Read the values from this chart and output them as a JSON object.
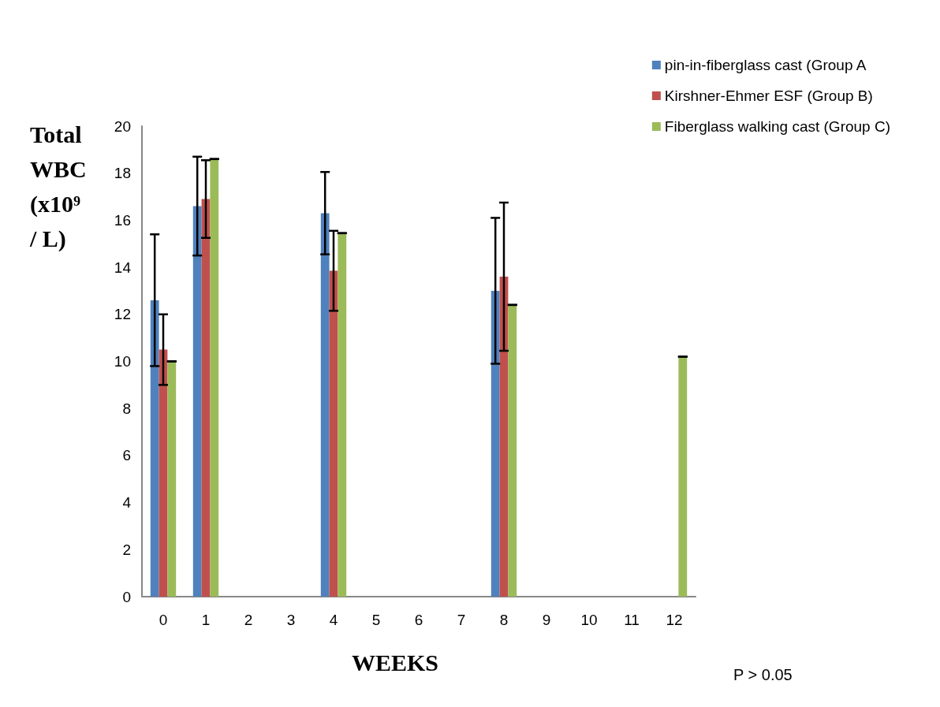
{
  "chart_data": {
    "type": "bar",
    "ylabel": "Total WBC (x10⁹/ L)",
    "xlabel": "WEEKS",
    "categories": [
      "0",
      "1",
      "2",
      "3",
      "4",
      "5",
      "6",
      "7",
      "8",
      "9",
      "10",
      "11",
      "12"
    ],
    "series": [
      {
        "name": "pin-in-fiberglass cast (Group A",
        "color": "#4f81bd",
        "values": [
          12.6,
          16.6,
          null,
          null,
          16.3,
          null,
          null,
          null,
          13.0,
          null,
          null,
          null,
          null
        ],
        "errors": [
          2.8,
          2.1,
          null,
          null,
          1.75,
          null,
          null,
          null,
          3.1,
          null,
          null,
          null,
          null
        ]
      },
      {
        "name": "Kirshner-Ehmer ESF (Group B)",
        "color": "#c0504d",
        "values": [
          10.5,
          16.9,
          null,
          null,
          13.85,
          null,
          null,
          null,
          13.6,
          null,
          null,
          null,
          null
        ],
        "errors": [
          1.5,
          1.65,
          null,
          null,
          1.7,
          null,
          null,
          null,
          3.15,
          null,
          null,
          null,
          null
        ]
      },
      {
        "name": "Fiberglass walking cast (Group C)",
        "color": "#9bbb59",
        "values": [
          10.0,
          18.6,
          null,
          null,
          15.45,
          null,
          null,
          null,
          12.4,
          null,
          null,
          null,
          10.2
        ],
        "errors": [
          0,
          0,
          null,
          null,
          0,
          null,
          null,
          null,
          0,
          null,
          null,
          null,
          0
        ]
      }
    ],
    "ylim": [
      0,
      20
    ],
    "yticks": [
      0,
      2,
      4,
      6,
      8,
      10,
      12,
      14,
      16,
      18,
      20
    ],
    "grid": false,
    "legend": "top right",
    "annotations": [
      "P > 0.05"
    ]
  }
}
